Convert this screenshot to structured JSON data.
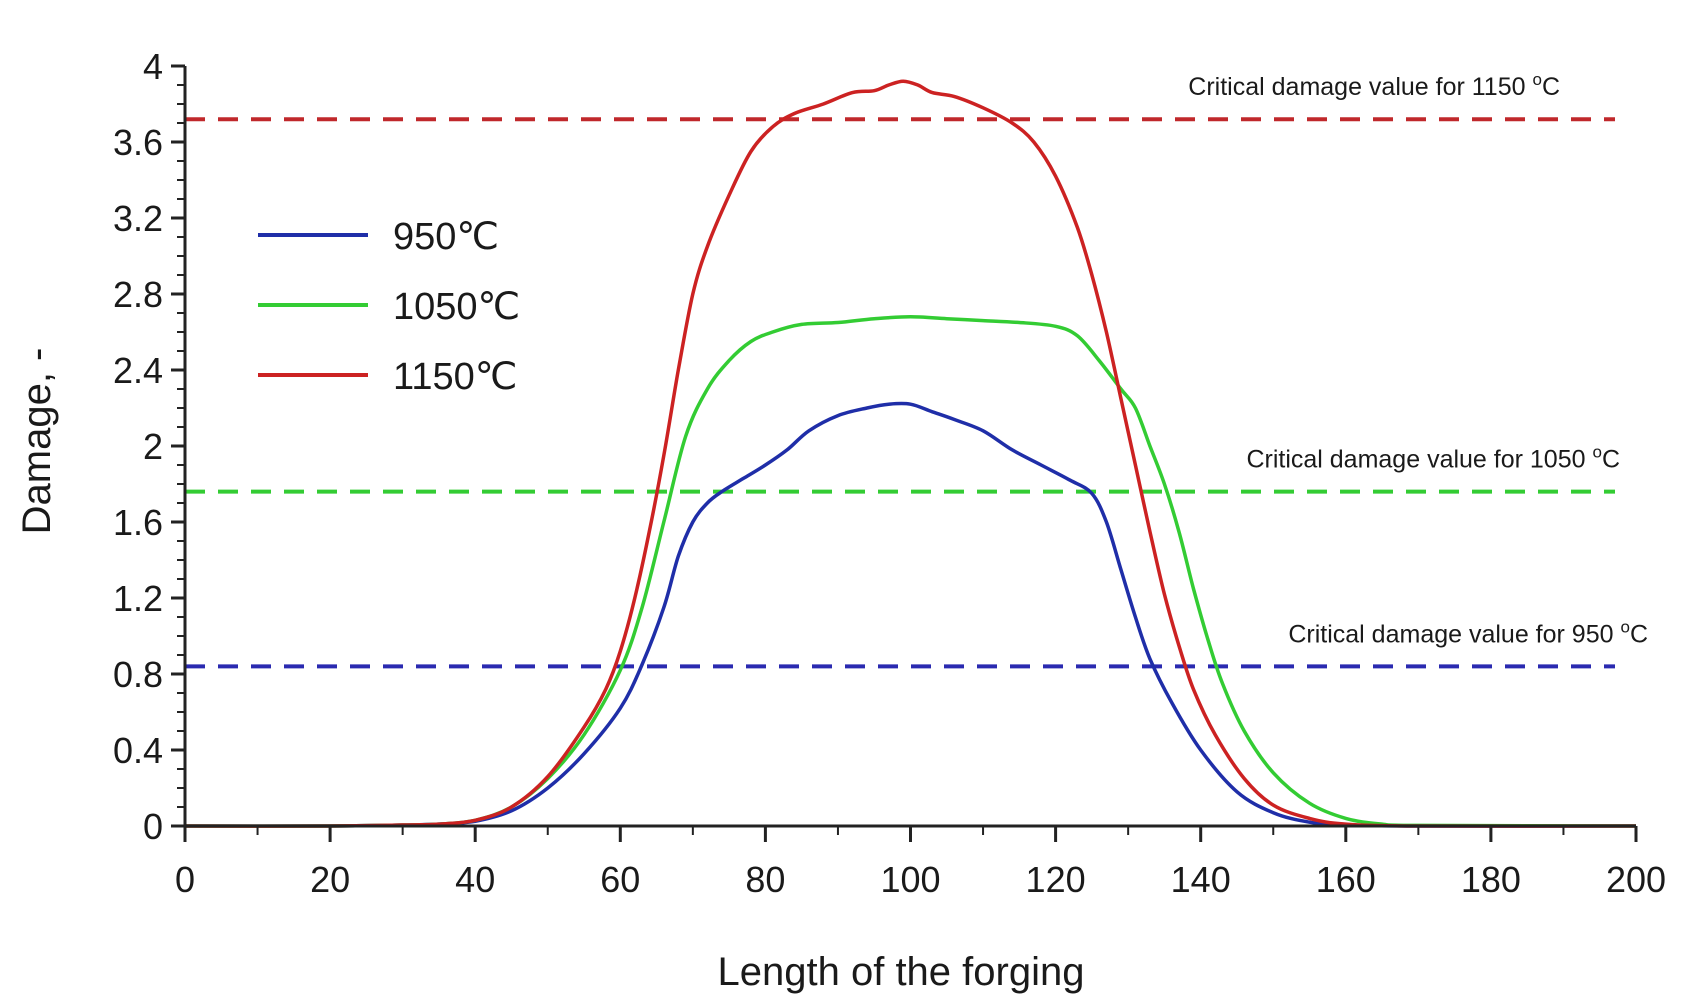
{
  "chart_data": {
    "type": "line",
    "xlabel": "Length of the forging",
    "ylabel": "Damage, -",
    "xlim": [
      0,
      200
    ],
    "ylim": [
      0,
      4
    ],
    "x_ticks": [
      "0",
      "20",
      "40",
      "60",
      "80",
      "100",
      "120",
      "140",
      "160",
      "180",
      "200"
    ],
    "y_ticks": [
      "0",
      "0.4",
      "0.8",
      "1.2",
      "1.6",
      "2",
      "2.4",
      "2.8",
      "3.2",
      "3.6",
      "4"
    ],
    "legend_position": "upper-left",
    "grid": false,
    "series": [
      {
        "name": "950℃",
        "color": "#1f2ea8",
        "x": [
          0,
          20,
          30,
          35,
          40,
          45,
          50,
          55,
          60,
          63,
          66,
          68,
          70,
          72,
          74,
          77,
          80,
          83,
          86,
          90,
          94,
          97,
          100,
          103,
          106,
          110,
          114,
          118,
          122,
          125,
          127,
          129,
          131,
          133,
          136,
          140,
          145,
          150,
          155,
          160,
          170,
          200
        ],
        "y": [
          0,
          0,
          0.005,
          0.01,
          0.025,
          0.08,
          0.2,
          0.38,
          0.62,
          0.85,
          1.15,
          1.42,
          1.6,
          1.7,
          1.76,
          1.83,
          1.9,
          1.98,
          2.08,
          2.16,
          2.2,
          2.22,
          2.22,
          2.18,
          2.14,
          2.08,
          1.98,
          1.9,
          1.82,
          1.75,
          1.6,
          1.35,
          1.1,
          0.88,
          0.65,
          0.4,
          0.18,
          0.07,
          0.02,
          0.005,
          0,
          0
        ]
      },
      {
        "name": "1050℃",
        "color": "#33cc33",
        "x": [
          0,
          20,
          30,
          35,
          40,
          45,
          50,
          55,
          60,
          63,
          66,
          69,
          72,
          75,
          78,
          81,
          85,
          90,
          95,
          100,
          105,
          110,
          115,
          120,
          123,
          126,
          129,
          131,
          133,
          135,
          137,
          139,
          141,
          143,
          146,
          150,
          155,
          160,
          165,
          170,
          200
        ],
        "y": [
          0,
          0,
          0.005,
          0.01,
          0.03,
          0.1,
          0.25,
          0.48,
          0.82,
          1.15,
          1.6,
          2.05,
          2.3,
          2.45,
          2.55,
          2.6,
          2.64,
          2.65,
          2.67,
          2.68,
          2.67,
          2.66,
          2.65,
          2.63,
          2.58,
          2.45,
          2.3,
          2.2,
          2.0,
          1.8,
          1.55,
          1.25,
          0.98,
          0.75,
          0.5,
          0.28,
          0.12,
          0.04,
          0.01,
          0.003,
          0
        ]
      },
      {
        "name": "1150℃",
        "color": "#cc2222",
        "x": [
          0,
          20,
          30,
          35,
          40,
          45,
          50,
          55,
          58,
          60,
          62,
          64,
          66,
          68,
          70,
          72,
          75,
          78,
          81,
          84,
          88,
          92,
          95,
          97,
          99,
          101,
          103,
          106,
          110,
          114,
          117,
          120,
          123,
          125,
          127,
          129,
          131,
          133,
          135,
          137,
          139,
          142,
          146,
          150,
          155,
          160,
          170,
          200
        ],
        "y": [
          0,
          0,
          0.005,
          0.01,
          0.03,
          0.1,
          0.26,
          0.52,
          0.72,
          0.92,
          1.2,
          1.55,
          1.95,
          2.4,
          2.8,
          3.05,
          3.32,
          3.55,
          3.68,
          3.75,
          3.8,
          3.86,
          3.87,
          3.9,
          3.92,
          3.9,
          3.86,
          3.84,
          3.78,
          3.7,
          3.6,
          3.42,
          3.15,
          2.9,
          2.6,
          2.25,
          1.9,
          1.55,
          1.22,
          0.95,
          0.72,
          0.48,
          0.25,
          0.11,
          0.04,
          0.01,
          0,
          0
        ]
      }
    ],
    "reference_lines": [
      {
        "y": 3.72,
        "color": "#c0282b",
        "label_main": "Critical damage value for 1150 ",
        "label_sup": "o",
        "label_unit": "C"
      },
      {
        "y": 1.76,
        "color": "#33cc33",
        "label_main": "Critical damage value for 1050 ",
        "label_sup": "o",
        "label_unit": "C"
      },
      {
        "y": 0.84,
        "color": "#2a2ab0",
        "label_main": "Critical damage value for 950 ",
        "label_sup": "o",
        "label_unit": "C"
      }
    ]
  }
}
